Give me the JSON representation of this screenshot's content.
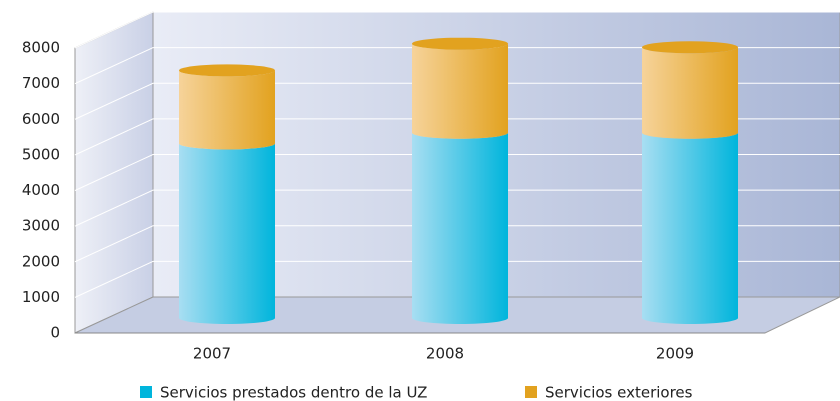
{
  "chart_data": {
    "type": "bar",
    "stacked": true,
    "categories": [
      "2007",
      "2008",
      "2009"
    ],
    "series": [
      {
        "name": "Servicios prestados dentro de la UZ",
        "color": "#00b5dc",
        "values": [
          4900,
          5200,
          5200
        ]
      },
      {
        "name": "Servicios exteriores",
        "color": "#e2a21f",
        "values": [
          2050,
          2500,
          2400
        ]
      }
    ],
    "ylim": [
      0,
      8000
    ],
    "yticks": [
      0,
      1000,
      2000,
      3000,
      4000,
      5000,
      6000,
      7000,
      8000
    ],
    "grid": true
  }
}
